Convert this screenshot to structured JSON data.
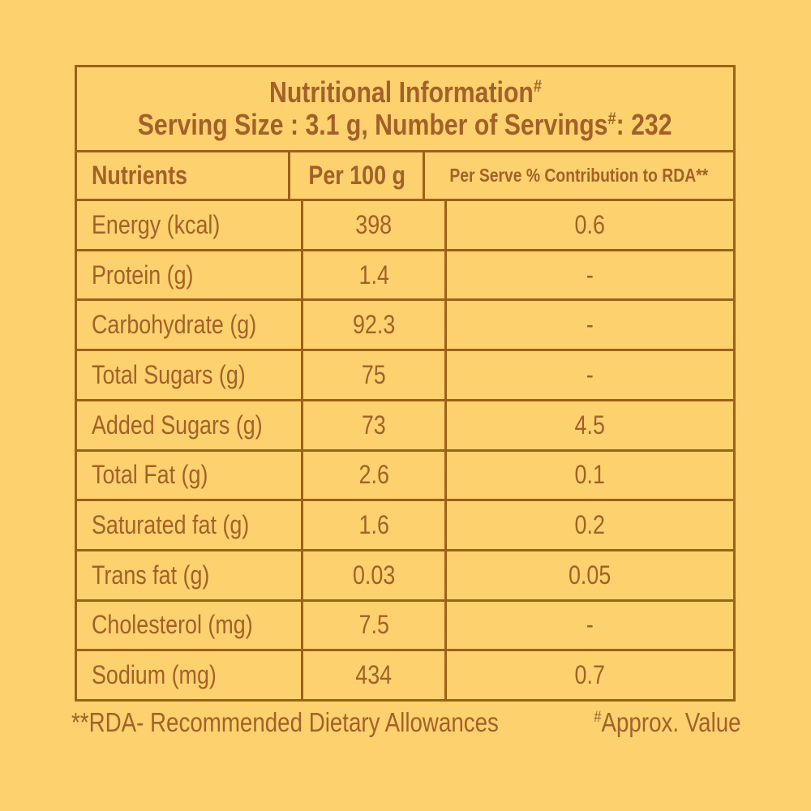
{
  "colors": {
    "background": "#FDD26E",
    "text": "#A4602A",
    "border": "#9D6118"
  },
  "header": {
    "title": "Nutritional Information",
    "title_superscript": "#",
    "serving_line": "Serving Size : 3.1 g, Number of Servings",
    "serving_superscript": "#",
    "serving_tail": ": 232"
  },
  "table": {
    "columns": [
      "Nutrients",
      "Per 100 g",
      "Per Serve % Contribution to RDA**"
    ],
    "rows": [
      {
        "nutrient": "Energy (kcal)",
        "per_100g": "398",
        "per_serve_rda": "0.6"
      },
      {
        "nutrient": "Protein (g)",
        "per_100g": "1.4",
        "per_serve_rda": "-"
      },
      {
        "nutrient": "Carbohydrate (g)",
        "per_100g": "92.3",
        "per_serve_rda": "-"
      },
      {
        "nutrient": "Total Sugars (g)",
        "per_100g": "75",
        "per_serve_rda": "-"
      },
      {
        "nutrient": "Added Sugars (g)",
        "per_100g": "73",
        "per_serve_rda": "4.5"
      },
      {
        "nutrient": "Total Fat (g)",
        "per_100g": "2.6",
        "per_serve_rda": "0.1"
      },
      {
        "nutrient": "Saturated fat (g)",
        "per_100g": "1.6",
        "per_serve_rda": "0.2"
      },
      {
        "nutrient": "Trans fat (g)",
        "per_100g": "0.03",
        "per_serve_rda": "0.05"
      },
      {
        "nutrient": "Cholesterol (mg)",
        "per_100g": "7.5",
        "per_serve_rda": "-"
      },
      {
        "nutrient": "Sodium (mg)",
        "per_100g": "434",
        "per_serve_rda": "0.7"
      }
    ]
  },
  "footnotes": {
    "rda": "**RDA- Recommended Dietary Allowances",
    "approx_superscript": "#",
    "approx": "Approx. Value"
  }
}
